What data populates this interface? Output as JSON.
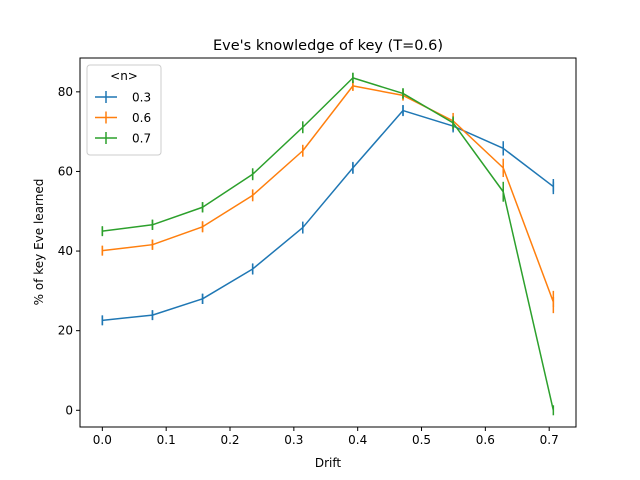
{
  "chart_data": {
    "type": "line",
    "title": "Eve's knowledge of key (T=0.6)",
    "xlabel": "Drift",
    "ylabel": "% of key Eve learned",
    "xlim": [
      -0.035,
      0.742
    ],
    "ylim": [
      -4.2,
      88.5
    ],
    "xticks": [
      0.0,
      0.1,
      0.2,
      0.3,
      0.4,
      0.5,
      0.6,
      0.7
    ],
    "xtick_labels": [
      "0.0",
      "0.1",
      "0.2",
      "0.3",
      "0.4",
      "0.5",
      "0.6",
      "0.7"
    ],
    "yticks": [
      0,
      20,
      40,
      60,
      80
    ],
    "ytick_labels": [
      "0",
      "20",
      "40",
      "60",
      "80"
    ],
    "x": [
      0.0,
      0.0785,
      0.157,
      0.2355,
      0.314,
      0.3925,
      0.471,
      0.5495,
      0.628,
      0.7065
    ],
    "grid": false,
    "legend": {
      "title": "<n>",
      "position": "upper-left"
    },
    "series": [
      {
        "name": "0.3",
        "color": "#1f77b4",
        "values": [
          22.6,
          23.9,
          28.0,
          35.5,
          45.9,
          60.9,
          75.3,
          71.4,
          65.8,
          56.2
        ],
        "errors": [
          1.2,
          1.2,
          1.3,
          1.4,
          1.5,
          1.5,
          1.4,
          1.6,
          1.8,
          1.9
        ]
      },
      {
        "name": "0.6",
        "color": "#ff7f0e",
        "values": [
          40.1,
          41.6,
          46.1,
          54.0,
          65.2,
          81.5,
          79.1,
          72.7,
          60.9,
          27.2
        ],
        "errors": [
          1.2,
          1.3,
          1.4,
          1.5,
          1.5,
          1.2,
          1.3,
          2.0,
          2.3,
          2.8
        ]
      },
      {
        "name": "0.7",
        "color": "#2ca02c",
        "values": [
          45.0,
          46.6,
          51.0,
          59.3,
          71.1,
          83.5,
          79.6,
          72.2,
          54.9,
          0.0
        ],
        "errors": [
          1.1,
          1.3,
          1.3,
          1.5,
          1.5,
          1.3,
          1.3,
          1.6,
          2.5,
          0.0
        ]
      }
    ]
  }
}
